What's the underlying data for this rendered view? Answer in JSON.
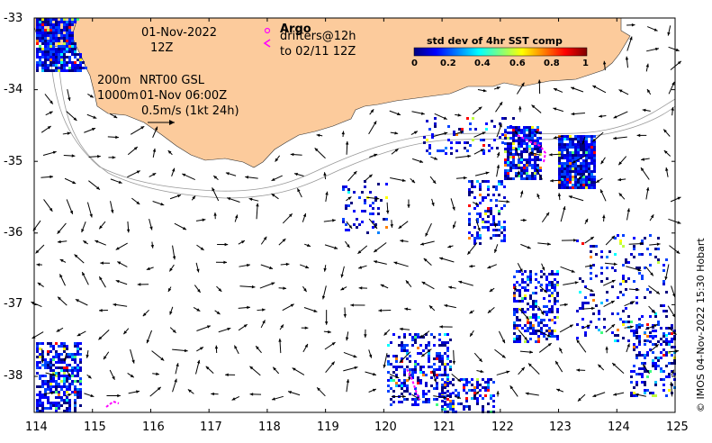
{
  "map": {
    "x_ticks": [
      "114",
      "115",
      "116",
      "117",
      "118",
      "119",
      "120",
      "121",
      "122",
      "123",
      "124",
      "125"
    ],
    "y_ticks": [
      "-33",
      "-34",
      "-35",
      "-36",
      "-37",
      "-38"
    ],
    "lon_range": [
      114,
      125
    ],
    "lat_range": [
      -38.5,
      -33
    ],
    "land_color": "#fccb9c",
    "arrow_color": "#000000"
  },
  "info": {
    "date": "01-Nov-2022",
    "hour": "12Z",
    "depth_200": "200m",
    "depth_1000": "1000m",
    "product": "NRT00 GSL",
    "altimetry_time": "01-Nov 06:00Z",
    "scale_label": "0.5m/s (1kt 24h)"
  },
  "argo": {
    "title": "Argo",
    "drifters": "drifters@12h",
    "to": "to 02/11 12Z",
    "color": "#ff00ff"
  },
  "colorbar": {
    "title": "std dev of 4hr SST comp",
    "ticks": [
      "0",
      "0.2",
      "0.4",
      "0.6",
      "0.8",
      "1"
    ]
  },
  "credit": "© IMOS 04-Nov-2022 15:30 Hobart"
}
